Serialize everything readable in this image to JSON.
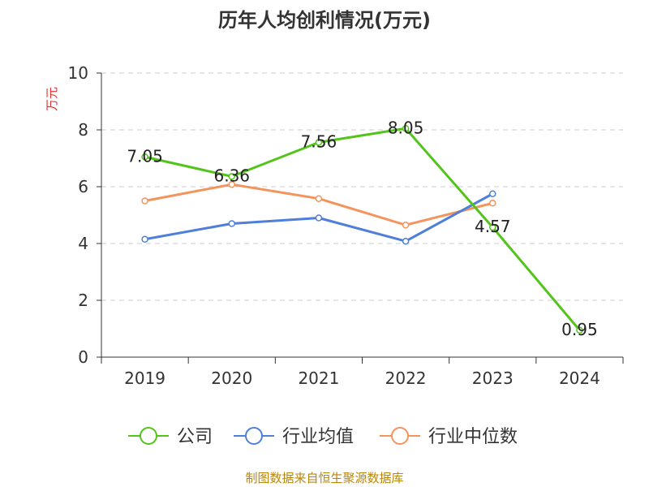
{
  "chart_data": {
    "type": "line",
    "title": "历年人均创利情况(万元)",
    "ylabel": "万元",
    "xlabel": "",
    "categories": [
      "2019",
      "2020",
      "2021",
      "2022",
      "2023",
      "2024"
    ],
    "ylim": [
      0,
      10
    ],
    "yticks": [
      "0",
      "2",
      "4",
      "6",
      "8",
      "10"
    ],
    "grid": true,
    "legend_position": "bottom",
    "series": [
      {
        "name": "公司",
        "color": "#52c41a",
        "values": [
          7.05,
          6.36,
          7.56,
          8.05,
          4.57,
          0.95
        ],
        "labels": [
          "7.05",
          "6.36",
          "7.56",
          "8.05",
          "4.57",
          "0.95"
        ]
      },
      {
        "name": "行业均值",
        "color": "#4e7fd9",
        "values": [
          4.15,
          4.7,
          4.9,
          4.08,
          5.75,
          null
        ]
      },
      {
        "name": "行业中位数",
        "color": "#f4935b",
        "values": [
          5.5,
          6.08,
          5.58,
          4.65,
          5.42,
          null
        ]
      }
    ]
  },
  "footer": {
    "source": "制图数据来自恒生聚源数据库"
  },
  "colors": {
    "title": "#333333",
    "axis": "#333333",
    "grid": "#cccccc",
    "ylabel": "#e03030",
    "source": "#b8860b"
  }
}
